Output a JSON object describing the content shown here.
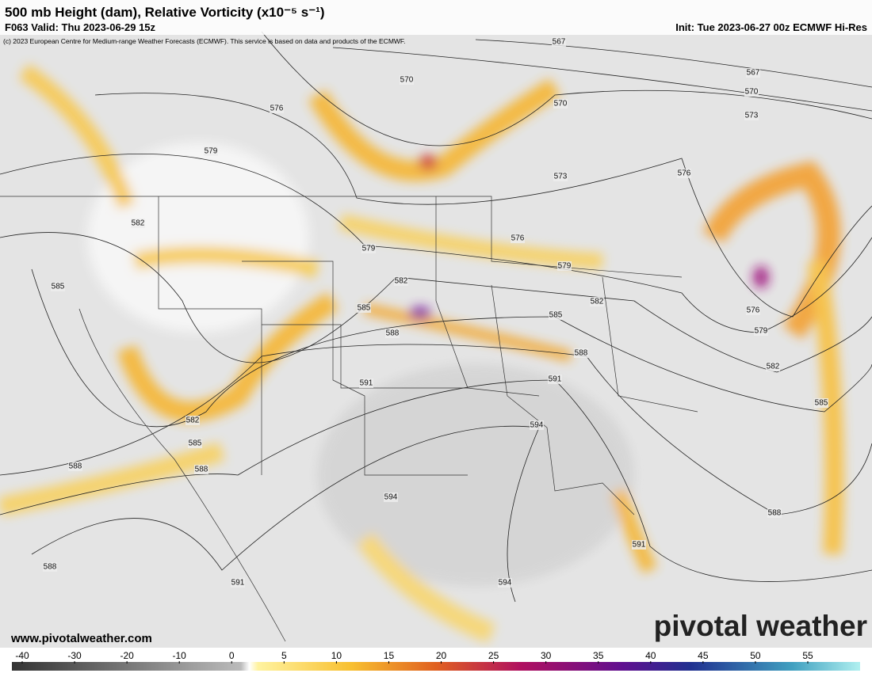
{
  "header": {
    "title": "500 mb Height (dam), Relative Vorticity (x10⁻⁵ s⁻¹)",
    "valid": "F063 Valid: Thu 2023-06-29 15z",
    "init": "Init: Tue 2023-06-27 00z ECMWF Hi-Res",
    "copyright": "(c) 2023 European Centre for Medium-range Weather Forecasts (ECMWF). This service is based on data and products of the ECMWF."
  },
  "footer": {
    "website": "www.pivotalweather.com",
    "logo": "pivotal weather"
  },
  "contour_labels": [
    "567",
    "567",
    "570",
    "570",
    "570",
    "573",
    "573",
    "576",
    "576",
    "576",
    "576",
    "579",
    "579",
    "579",
    "579",
    "582",
    "582",
    "582",
    "582",
    "582",
    "585",
    "585",
    "585",
    "585",
    "585",
    "588",
    "588",
    "588",
    "588",
    "588",
    "588",
    "591",
    "591",
    "591",
    "591",
    "594",
    "594",
    "594"
  ],
  "colorbar": {
    "ticks": [
      -40,
      -30,
      -20,
      -10,
      0,
      5,
      10,
      15,
      20,
      25,
      30,
      35,
      40,
      45,
      50,
      55
    ]
  }
}
